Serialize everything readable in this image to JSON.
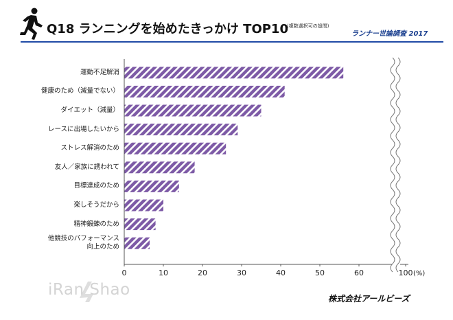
{
  "header": {
    "title": "Q18 ランニングを始めたきっかけ TOP10",
    "note": "(複数選択可の設問)",
    "survey": "ランナー世論調査 2017"
  },
  "footer": {
    "watermark": "iRan Shao",
    "company": "株式会社アールビーズ"
  },
  "colors": {
    "bar": "#7d5aa6",
    "stripe": "#ffffff",
    "rule": "#1f4aa6",
    "survey": "#1a3f8f"
  },
  "chart_data": {
    "type": "bar",
    "orientation": "horizontal",
    "categories": [
      "運動不足解消",
      "健康のため（減量でない）",
      "ダイエット（減量）",
      "レースに出場したいから",
      "ストレス解消のため",
      "友人／家族に誘われて",
      "目標達成のため",
      "楽しそうだから",
      "精神鍛錬のため",
      "他競技のパフォーマンス\n向上のため"
    ],
    "values": [
      56,
      41,
      35,
      29,
      26,
      18,
      14,
      10,
      8,
      6.5
    ],
    "xlim": [
      0,
      100
    ],
    "xticks": [
      "0",
      "10",
      "20",
      "30",
      "40",
      "50",
      "60",
      "100"
    ],
    "x_unit": "(%)",
    "axis_break": true,
    "grid": false,
    "legend": "none"
  }
}
